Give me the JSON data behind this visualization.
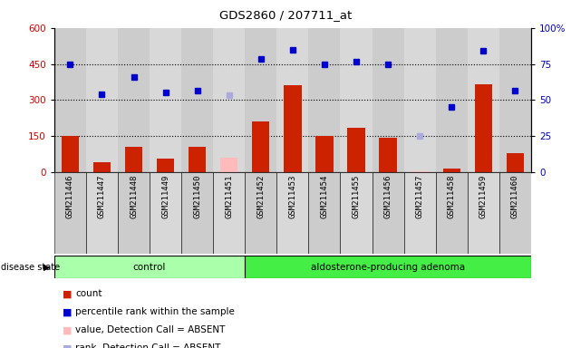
{
  "title": "GDS2860 / 207711_at",
  "samples": [
    "GSM211446",
    "GSM211447",
    "GSM211448",
    "GSM211449",
    "GSM211450",
    "GSM211451",
    "GSM211452",
    "GSM211453",
    "GSM211454",
    "GSM211455",
    "GSM211456",
    "GSM211457",
    "GSM211458",
    "GSM211459",
    "GSM211460"
  ],
  "bar_values": [
    150,
    40,
    105,
    55,
    105,
    0,
    210,
    360,
    150,
    185,
    145,
    0,
    15,
    365,
    80
  ],
  "bar_absent": [
    0,
    0,
    0,
    0,
    0,
    60,
    0,
    0,
    0,
    0,
    0,
    5,
    0,
    0,
    0
  ],
  "rank_values": [
    450,
    325,
    395,
    330,
    340,
    0,
    470,
    510,
    450,
    460,
    450,
    0,
    270,
    505,
    340
  ],
  "rank_absent": [
    0,
    0,
    0,
    0,
    0,
    320,
    0,
    0,
    0,
    0,
    0,
    150,
    0,
    0,
    0
  ],
  "is_absent": [
    false,
    false,
    false,
    false,
    false,
    true,
    false,
    false,
    false,
    false,
    false,
    true,
    false,
    false,
    false
  ],
  "n_control": 6,
  "ylim_left": [
    0,
    600
  ],
  "ylim_right": [
    0,
    100
  ],
  "yticks_left": [
    0,
    150,
    300,
    450,
    600
  ],
  "yticks_right": [
    0,
    25,
    50,
    75,
    100
  ],
  "left_tick_color": "#cc0000",
  "right_tick_color": "#0000bb",
  "plot_bg": "#d8d8d8",
  "ctrl_color_light": "#aaffaa",
  "ctrl_color": "#44ee44",
  "aden_color": "#44ee44",
  "legend": [
    {
      "label": "count",
      "color": "#cc2200"
    },
    {
      "label": "percentile rank within the sample",
      "color": "#0000cc"
    },
    {
      "label": "value, Detection Call = ABSENT",
      "color": "#ffbbbb"
    },
    {
      "label": "rank, Detection Call = ABSENT",
      "color": "#aaaadd"
    }
  ]
}
